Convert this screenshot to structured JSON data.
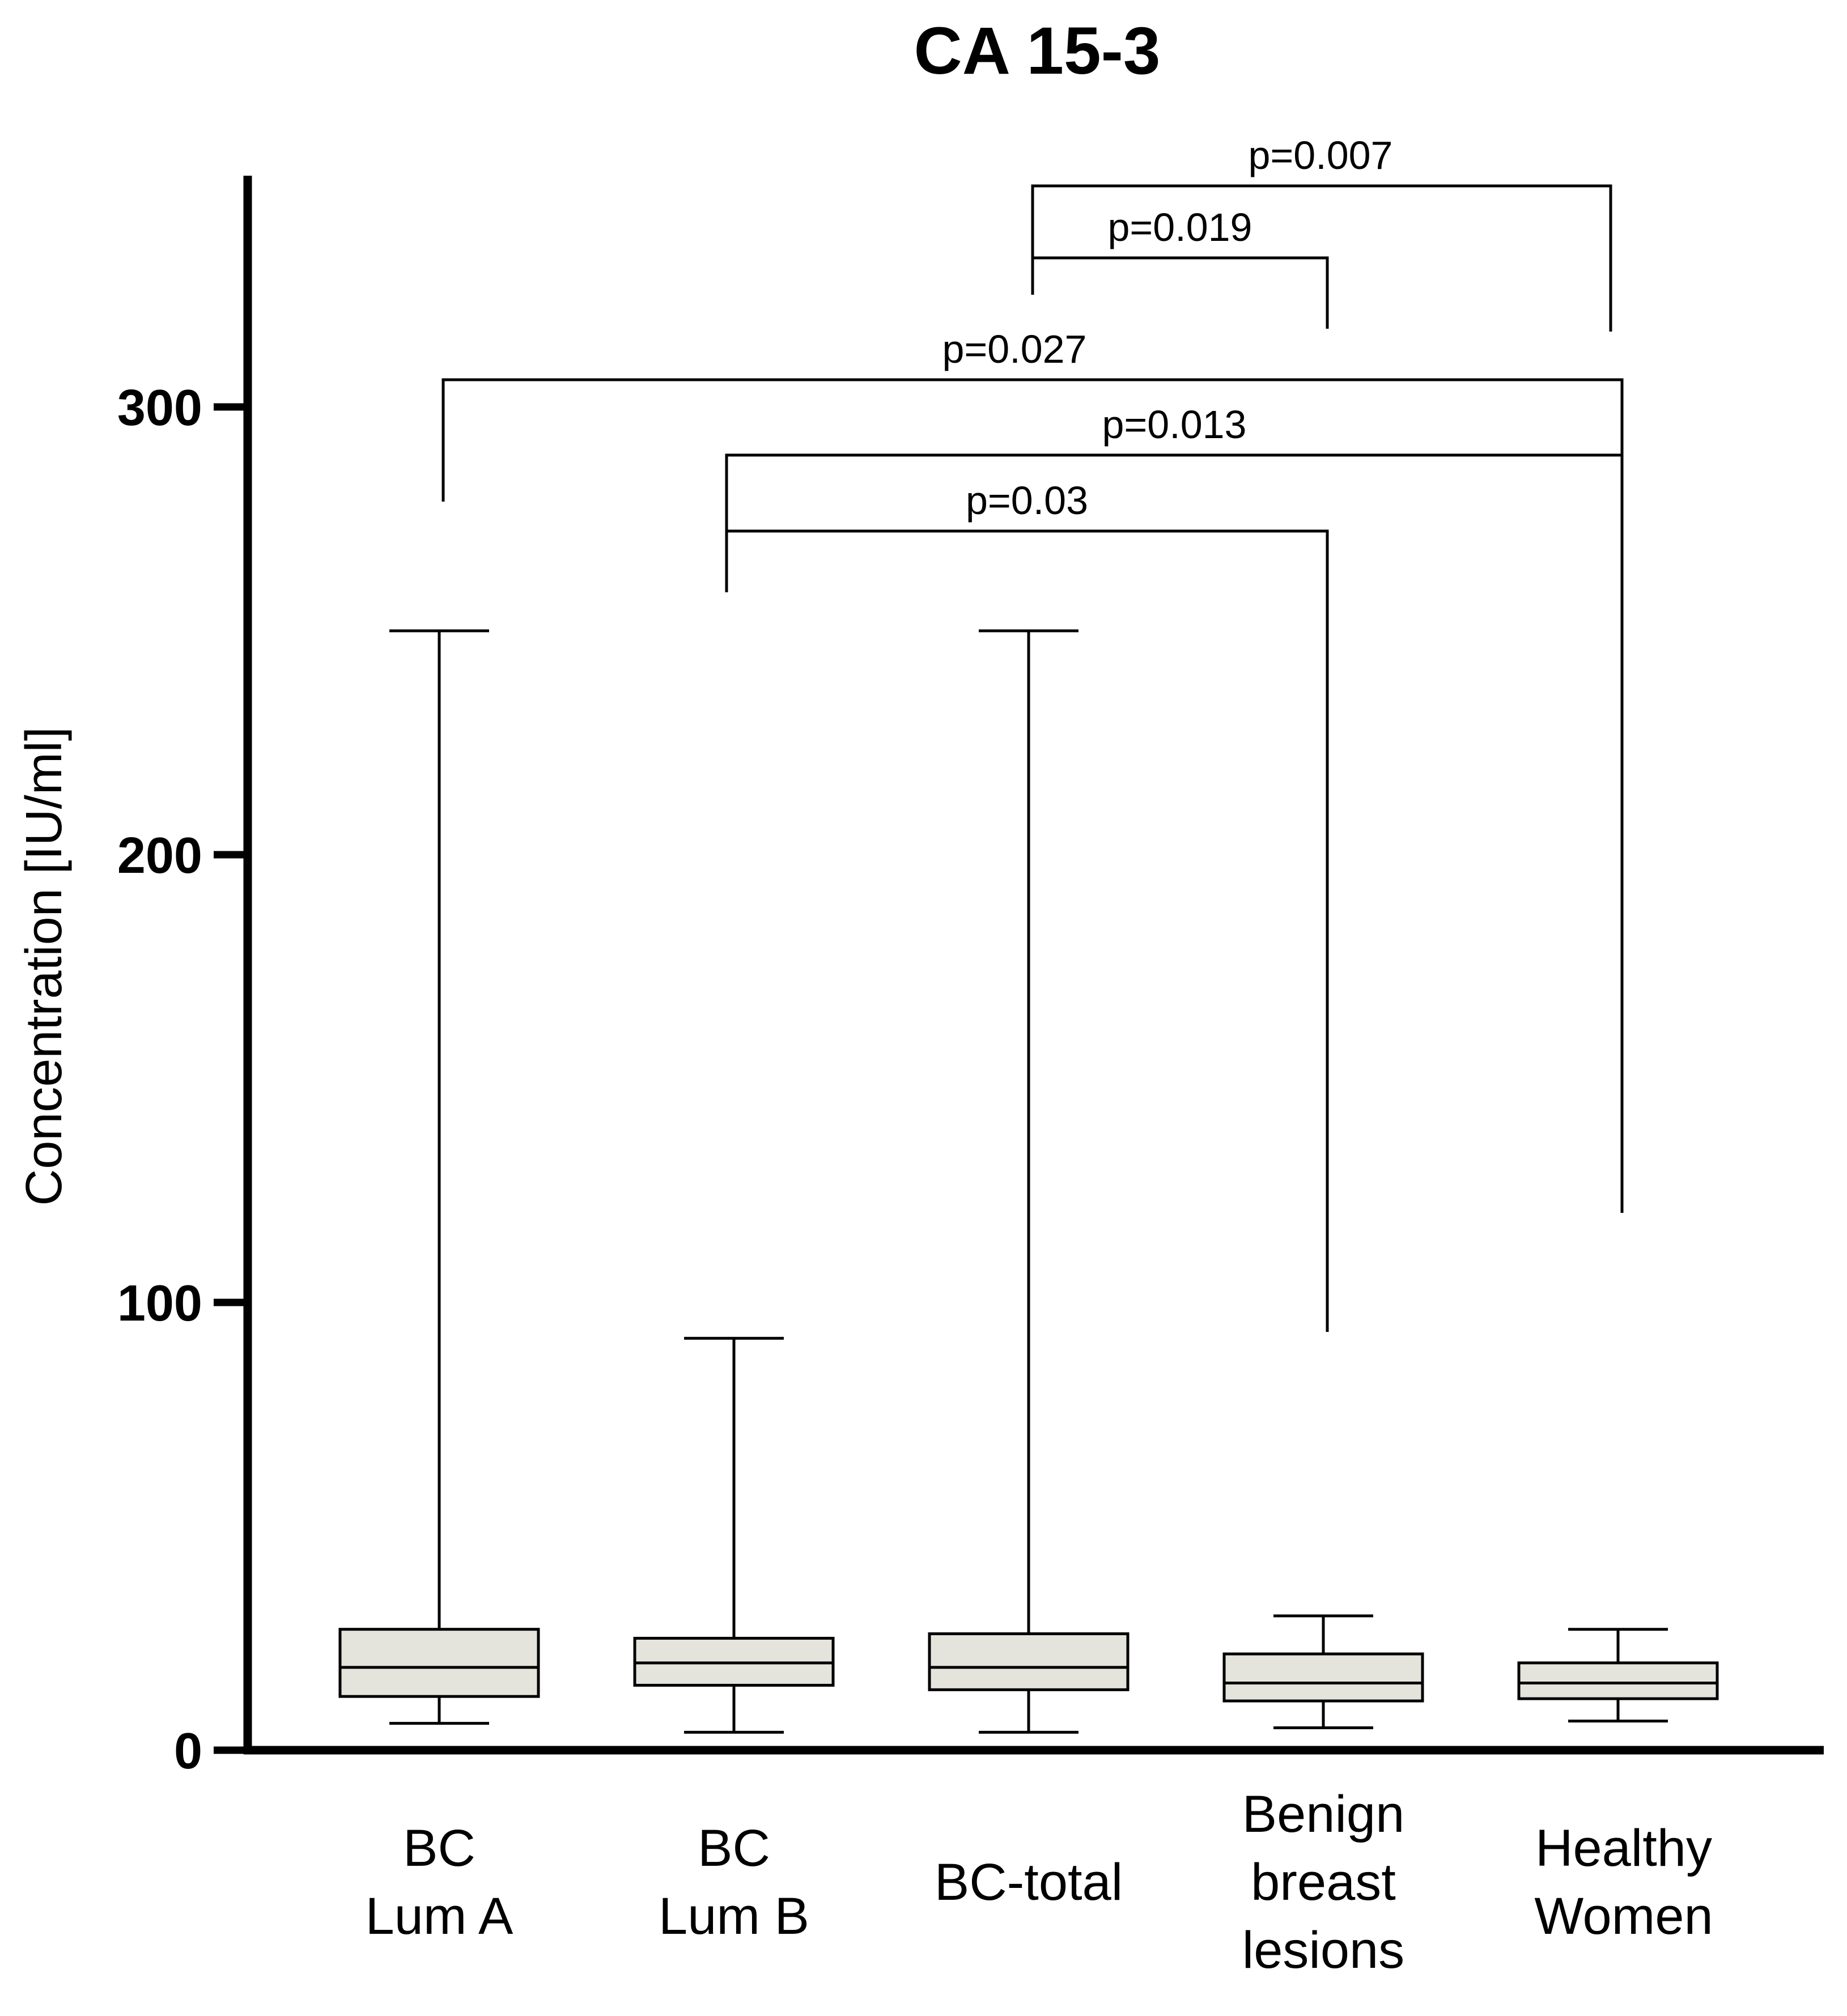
{
  "chart_data": {
    "type": "box",
    "title": "CA 15-3",
    "xlabel": "",
    "ylabel": "Concentration  [IU/ml]",
    "ylim": [
      0,
      350
    ],
    "yticks": [
      0,
      100,
      200,
      300
    ],
    "grid": false,
    "colors": {
      "box_fill": "#e4e4dc",
      "stroke": "#000000"
    },
    "categories": [
      {
        "lines": [
          "BC",
          "Lum  A"
        ]
      },
      {
        "lines": [
          "BC",
          "Lum  B"
        ]
      },
      {
        "lines": [
          "BC-total"
        ]
      },
      {
        "lines": [
          "Benign",
          "breast",
          "lesions"
        ]
      },
      {
        "lines": [
          "Healthy",
          "Women"
        ]
      }
    ],
    "boxes": [
      {
        "min": 6,
        "q1": 12,
        "median": 18.5,
        "q3": 27,
        "max": 250
      },
      {
        "min": 4,
        "q1": 14.5,
        "median": 19.5,
        "q3": 25,
        "max": 92
      },
      {
        "min": 4,
        "q1": 13.5,
        "median": 18.5,
        "q3": 26,
        "max": 250
      },
      {
        "min": 5,
        "q1": 11,
        "median": 15,
        "q3": 21.5,
        "max": 30
      },
      {
        "min": 6.5,
        "q1": 11.5,
        "median": 15,
        "q3": 19.5,
        "max": 27
      }
    ],
    "comparisons": [
      {
        "from": 2,
        "to": 4,
        "label": "p=0.007"
      },
      {
        "from": 2,
        "to": 3,
        "label": "p=0.019"
      },
      {
        "from": 0,
        "to": 4,
        "label": "p=0.027"
      },
      {
        "from": 1,
        "to": 4,
        "label": "p=0.013"
      },
      {
        "from": 1,
        "to": 3,
        "label": "p=0.03"
      }
    ]
  }
}
